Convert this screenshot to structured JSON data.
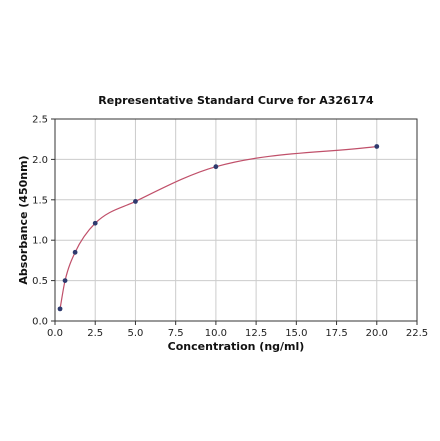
{
  "chart_data": {
    "type": "scatter",
    "title": "Representative Standard Curve for A326174",
    "xlabel": "Concentration (ng/ml)",
    "ylabel": "Absorbance (450nm)",
    "xlim": [
      0,
      22.5
    ],
    "ylim": [
      0,
      2.5
    ],
    "x_ticks": [
      "0.0",
      "2.5",
      "5.0",
      "7.5",
      "10.0",
      "12.5",
      "15.0",
      "17.5",
      "20.0",
      "22.5"
    ],
    "y_ticks": [
      "0.0",
      "0.5",
      "1.0",
      "1.5",
      "2.0",
      "2.5"
    ],
    "grid": true,
    "series": [
      {
        "x": [
          0.313,
          0.625,
          1.25,
          2.5,
          5.0,
          10.0,
          20.0
        ],
        "y": [
          0.15,
          0.5,
          0.85,
          1.21,
          1.48,
          1.91,
          2.16
        ],
        "color": "#2e3a6e"
      }
    ],
    "fit_curve": {
      "color": "#c0506a"
    }
  }
}
